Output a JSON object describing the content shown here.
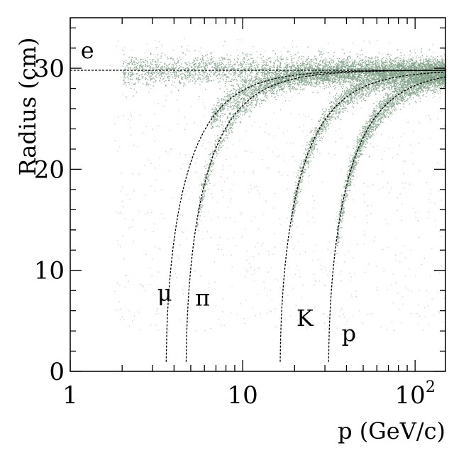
{
  "colors": {
    "band": "#7f9f86",
    "curve": "#000000",
    "axis": "#000000",
    "background": "#ffffff"
  },
  "chart_data": {
    "type": "scatter",
    "title": "",
    "xlabel": "p (GeV/c)",
    "ylabel": "Radius (cm)",
    "xscale": "log",
    "xlim": [
      1,
      150
    ],
    "ylim": [
      0,
      35
    ],
    "grid": false,
    "x_ticks": [
      {
        "value": 1,
        "label": "1"
      },
      {
        "value": 10,
        "label": "10"
      },
      {
        "value": 100,
        "label": "10",
        "exponent": "2"
      }
    ],
    "y_ticks": [
      {
        "value": 0,
        "label": "0"
      },
      {
        "value": 10,
        "label": "10"
      },
      {
        "value": 20,
        "label": "20"
      },
      {
        "value": 30,
        "label": "30"
      }
    ],
    "series": [
      {
        "name": "e",
        "threshold_p": 0.0,
        "saturation_radius": 29.8,
        "band_from_p": 2.0,
        "label_p": 1.15,
        "label_r": 31.0
      },
      {
        "name": "μ",
        "threshold_p": 3.6,
        "saturation_radius": 29.8,
        "band_from_p": 6.5,
        "label_p": 3.2,
        "label_r": 7.0
      },
      {
        "name": "π",
        "threshold_p": 4.7,
        "saturation_radius": 29.8,
        "band_from_p": 5.4,
        "label_p": 5.3,
        "label_r": 6.5
      },
      {
        "name": "K",
        "threshold_p": 16.5,
        "saturation_radius": 29.8,
        "band_from_p": 19.0,
        "label_p": 20.5,
        "label_r": 4.5
      },
      {
        "name": "p",
        "threshold_p": 31.5,
        "saturation_radius": 29.8,
        "band_from_p": 35.0,
        "label_p": 37.5,
        "label_r": 3.0
      }
    ]
  }
}
